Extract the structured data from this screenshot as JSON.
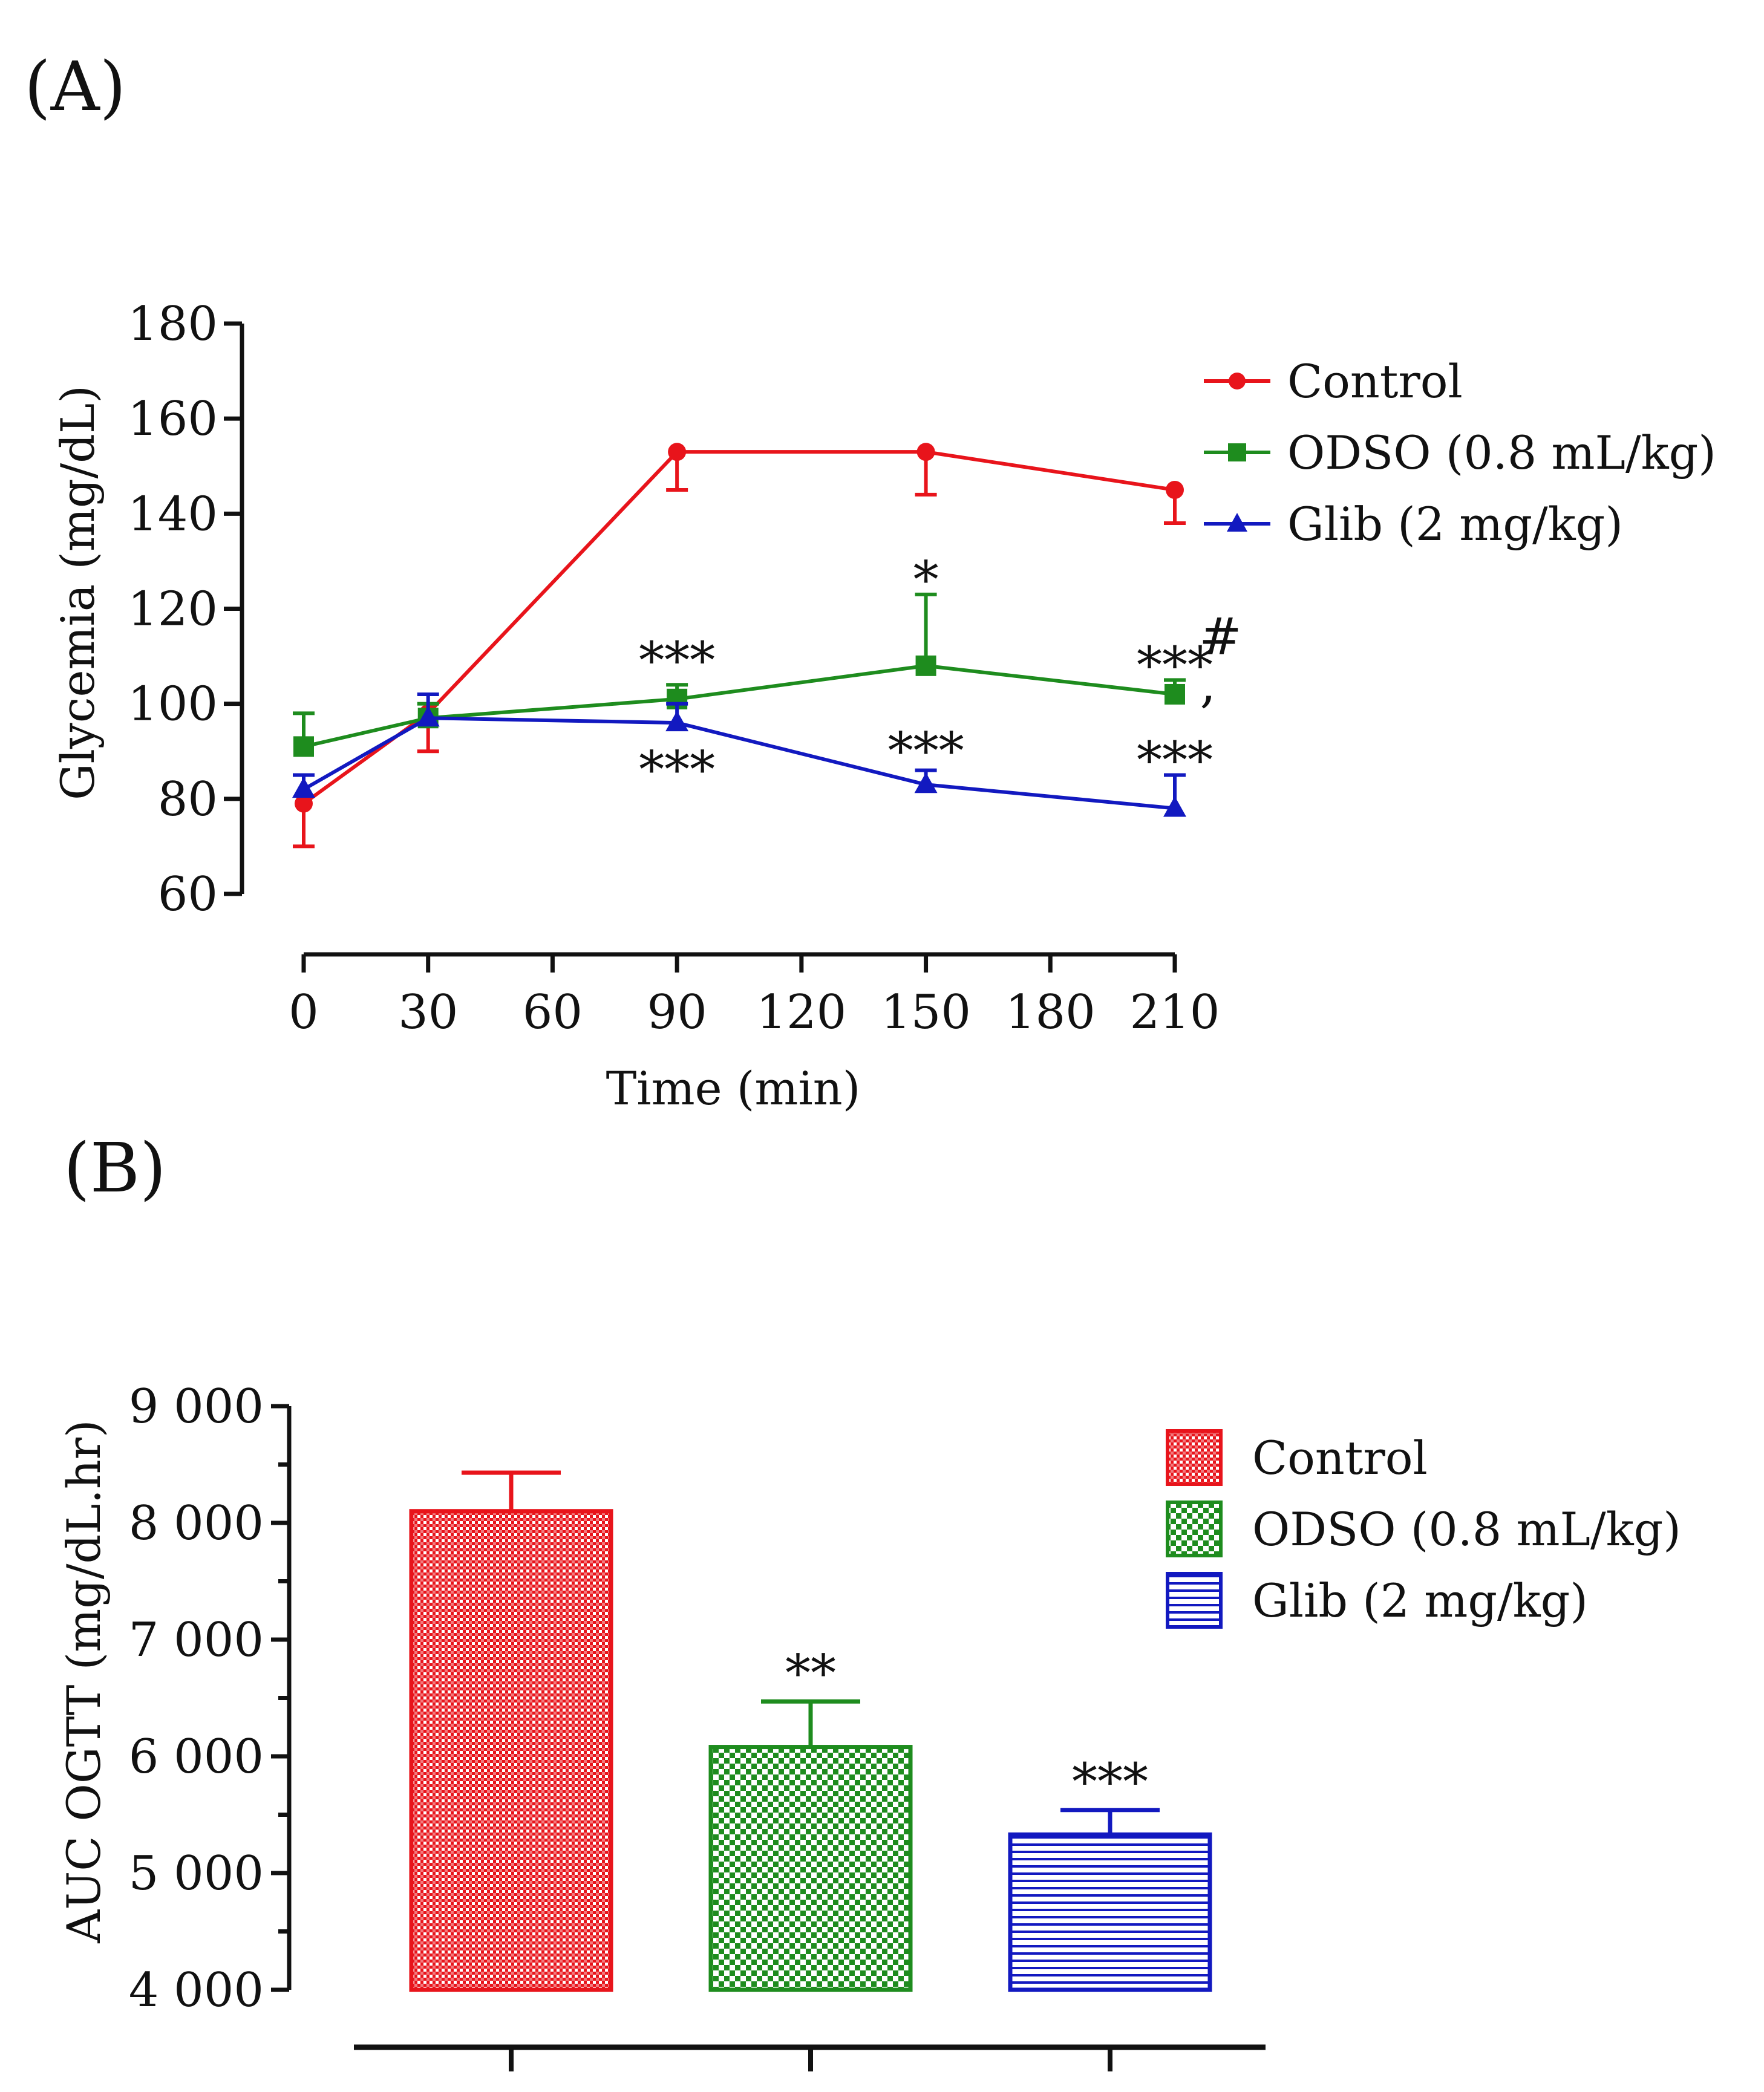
{
  "chart_data": [
    {
      "panel_label": "(A)",
      "type": "line",
      "xlabel": "Time (min)",
      "ylabel": "Glycemia (mg/dL)",
      "x": [
        0,
        30,
        90,
        150,
        210
      ],
      "x_ticks": [
        "0",
        "30",
        "60",
        "90",
        "120",
        "150",
        "180",
        "210"
      ],
      "x_tick_values": [
        0,
        30,
        60,
        90,
        120,
        150,
        180,
        210
      ],
      "y_ticks": [
        "60",
        "80",
        "100",
        "120",
        "140",
        "160",
        "180"
      ],
      "y_tick_values": [
        60,
        80,
        100,
        120,
        140,
        160,
        180
      ],
      "ylim": [
        60,
        180
      ],
      "xlim": [
        0,
        210
      ],
      "legend_position": "top-right",
      "series": [
        {
          "name": "Control",
          "color": "#e8141b",
          "marker": "circle",
          "direction": "down",
          "values": [
            79,
            98,
            153,
            153,
            145
          ],
          "errors": [
            9,
            8,
            8,
            9,
            7
          ]
        },
        {
          "name": "ODSO (0.8 mL/kg)",
          "color": "#1e8c1e",
          "marker": "square",
          "direction": "up",
          "values": [
            91,
            97,
            101,
            108,
            102
          ],
          "errors": [
            7,
            3,
            3,
            15,
            3
          ]
        },
        {
          "name": "Glib (2 mg/kg)",
          "color": "#1219c0",
          "marker": "triangle",
          "direction": "up",
          "values": [
            82,
            97,
            96,
            83,
            78
          ],
          "errors": [
            3,
            5,
            4,
            3,
            7
          ]
        }
      ],
      "annotations": [
        {
          "text": "***",
          "x": 90,
          "y": 109
        },
        {
          "text": "***",
          "x": 90,
          "y": 86
        },
        {
          "text": "*",
          "x": 150,
          "y": 126
        },
        {
          "text": "***",
          "x": 150,
          "y": 90
        },
        {
          "text": "***",
          "x": 210,
          "y": 108
        },
        {
          "text": "***",
          "x": 210,
          "y": 88
        },
        {
          "text": ",",
          "x": 218,
          "y": 104
        },
        {
          "text": "#",
          "x": 221,
          "y": 114
        }
      ]
    },
    {
      "panel_label": "(B)",
      "type": "bar",
      "ylabel": "AUC OGTT (mg/dL.hr)",
      "y_ticks": [
        "4 000",
        "5 000",
        "6 000",
        "7 000",
        "8 000",
        "9 000"
      ],
      "y_tick_values": [
        4000,
        5000,
        6000,
        7000,
        8000,
        9000
      ],
      "ylim": [
        4000,
        9000
      ],
      "categories": [
        "Control",
        "ODSO (0.8 mL/kg)",
        "Glib (2 mg/kg)"
      ],
      "values": [
        8100,
        6080,
        5330
      ],
      "errors": [
        330,
        390,
        210
      ],
      "colors": [
        "#e8141b",
        "#1e8c1e",
        "#1219c0"
      ],
      "patterns": [
        "dots",
        "checker",
        "hlines"
      ],
      "legend_position": "top-right",
      "annotations": [
        {
          "text": "",
          "category": 0
        },
        {
          "text": "**",
          "category": 1
        },
        {
          "text": "***",
          "category": 2
        }
      ]
    }
  ]
}
